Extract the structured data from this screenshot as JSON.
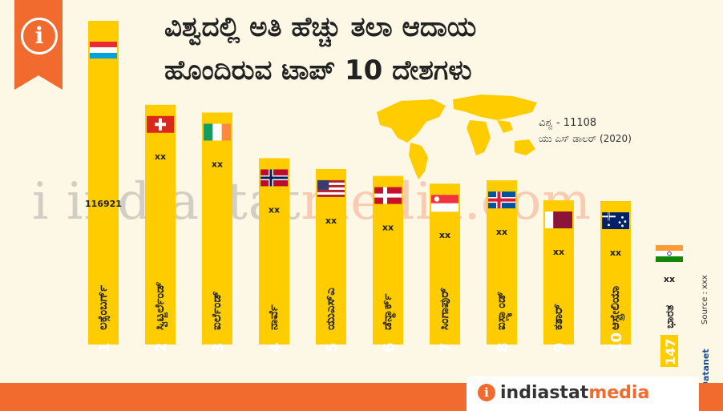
{
  "title_line1": "ವಿಶ್ವದಲ್ಲಿ ಅತಿ ಹೆಚ್ಚು ತಲಾ ಆದಾಯ",
  "title_line2": "ಹೊಂದಿರುವ ಟಾಪ್ 10 ದೇಶಗಳು",
  "world_label": "ವಿಶ್ವ - 11108",
  "unit_label": "ಯು ಎಸ್ ಡಾಲರ್ (2020)",
  "footer_brand_a": "indiastat",
  "footer_brand_b": "media",
  "watermark_a": "i indiastat",
  "watermark_b": "media.com",
  "datanet_label": "© Datanet",
  "source_label": "Source : xxx",
  "colors": {
    "bar": "#ffcc00",
    "accent": "#f26b2e",
    "text": "#222222"
  },
  "chart_data": {
    "type": "bar",
    "categories": [
      "ಲಕ್ಸೆಂಬರ್ಗ್",
      "ಸ್ವಿಟ್ಜರ್ಲೆಂಡ್",
      "ಐರ್ಲೆಂಡ್",
      "ನಾರ್ವೆ",
      "ಯುಎಸ್ಎ",
      "ಡೆನ್ಮಾರ್ಕ್",
      "ಸಿಂಗಾಪುರ್",
      "ಐಸ್ಲ್ಯಾಂಡ್",
      "ಕತಾರ್",
      "ಆಸ್ಟ್ರೇಲಿಯಾ"
    ],
    "ranks": [
      "1",
      "2",
      "3",
      "4",
      "5",
      "6",
      "7",
      "8",
      "9",
      "10"
    ],
    "value_labels": [
      "116921",
      "xx",
      "xx",
      "xx",
      "xx",
      "xx",
      "xx",
      "xx",
      "xx",
      "xx"
    ],
    "values": [
      116921,
      86600,
      83800,
      67300,
      63400,
      60900,
      58100,
      59300,
      52100,
      51800
    ],
    "flags": [
      "luxembourg-flag",
      "switzerland-flag",
      "ireland-flag",
      "norway-flag",
      "usa-flag",
      "denmark-flag",
      "singapore-flag",
      "iceland-flag",
      "qatar-flag",
      "australia-flag"
    ],
    "india": {
      "rank": "147",
      "name": "ಭಾರತ",
      "value_label": "xx"
    }
  }
}
